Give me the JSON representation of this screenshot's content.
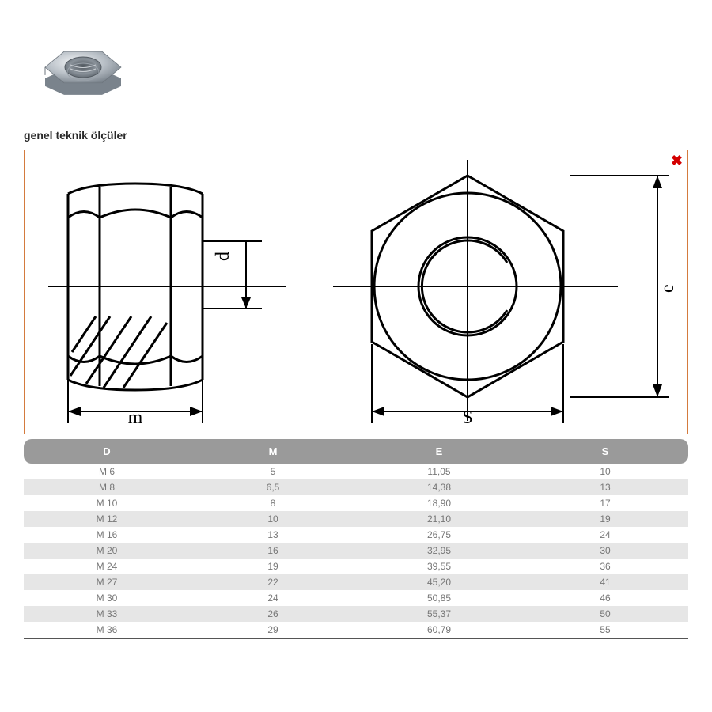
{
  "heading": "genel teknik ölçüler",
  "diagram": {
    "frame_border_color": "#d47b3e",
    "close_icon_color": "#d40000",
    "labels": {
      "m": "m",
      "d": "d",
      "s": "S",
      "e": "e"
    },
    "stroke": "#000000",
    "hatch": "#000000"
  },
  "nut_photo": {
    "body": "#b8bfc6",
    "light": "#e5e9ec",
    "dark": "#7a838c",
    "hole": "#9aa2aa",
    "thread": "#6d757d"
  },
  "table": {
    "header_bg": "#9a9a9a",
    "header_fg": "#ffffff",
    "stripe_bg": "#e6e6e6",
    "text_color": "#777777",
    "columns": [
      "D",
      "M",
      "E",
      "S"
    ],
    "rows": [
      [
        "M 6",
        "5",
        "11,05",
        "10"
      ],
      [
        "M 8",
        "6,5",
        "14,38",
        "13"
      ],
      [
        "M 10",
        "8",
        "18,90",
        "17"
      ],
      [
        "M 12",
        "10",
        "21,10",
        "19"
      ],
      [
        "M 16",
        "13",
        "26,75",
        "24"
      ],
      [
        "M 20",
        "16",
        "32,95",
        "30"
      ],
      [
        "M 24",
        "19",
        "39,55",
        "36"
      ],
      [
        "M 27",
        "22",
        "45,20",
        "41"
      ],
      [
        "M 30",
        "24",
        "50,85",
        "46"
      ],
      [
        "M 33",
        "26",
        "55,37",
        "50"
      ],
      [
        "M 36",
        "29",
        "60,79",
        "55"
      ]
    ]
  }
}
